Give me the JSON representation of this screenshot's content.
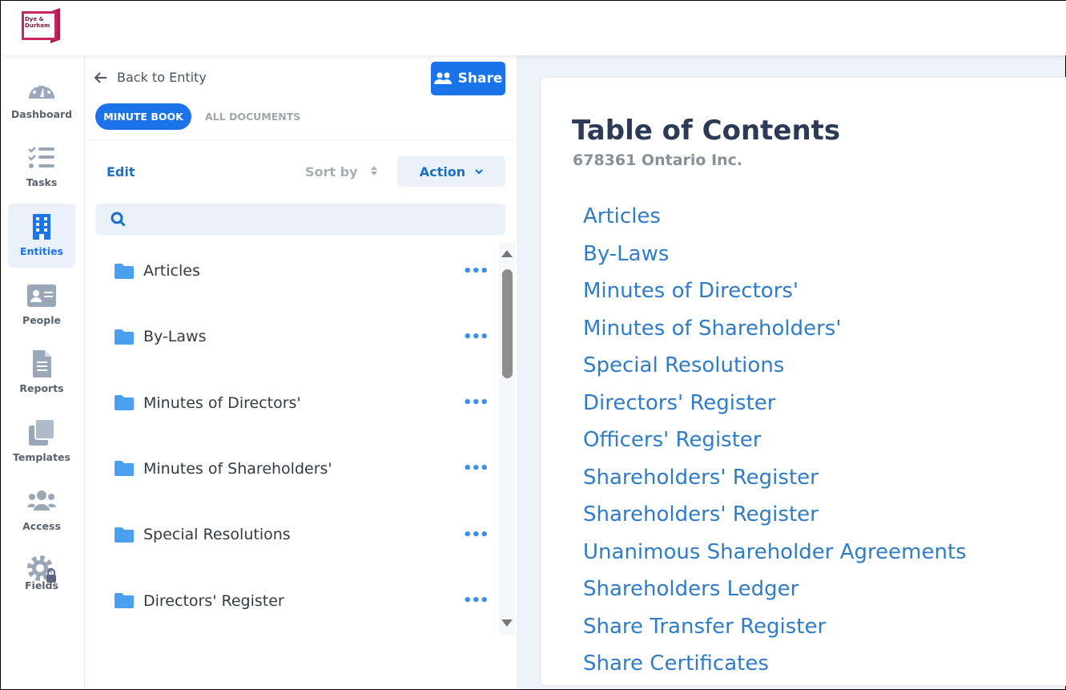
{
  "logo": {
    "text": "Dye &\nDurham",
    "brand_color": "#c8245f"
  },
  "sidebar": {
    "items": [
      {
        "label": "Dashboard",
        "icon": "dashboard-gauge-icon"
      },
      {
        "label": "Tasks",
        "icon": "tasks-list-icon"
      },
      {
        "label": "Entities",
        "icon": "building-icon",
        "active": true
      },
      {
        "label": "People",
        "icon": "id-card-icon"
      },
      {
        "label": "Reports",
        "icon": "document-icon"
      },
      {
        "label": "Templates",
        "icon": "copy-icon"
      },
      {
        "label": "Access",
        "icon": "users-icon"
      },
      {
        "label": "Fields",
        "icon": "gear-lock-icon"
      }
    ]
  },
  "panel": {
    "back_label": "Back to Entity",
    "share_label": "Share",
    "tabs": [
      {
        "label": "MINUTE BOOK",
        "active": true
      },
      {
        "label": "ALL DOCUMENTS"
      }
    ],
    "edit_label": "Edit",
    "sort_label": "Sort by",
    "action_label": "Action",
    "search": {
      "value": "",
      "placeholder": ""
    },
    "folders": [
      "Articles",
      "By-Laws",
      "Minutes of Directors'",
      "Minutes of Shareholders'",
      "Special Resolutions",
      "Directors' Register"
    ],
    "more_label": "•••"
  },
  "toc": {
    "title": "Table of Contents",
    "subtitle": "678361 Ontario Inc.",
    "items": [
      "Articles",
      "By-Laws",
      "Minutes of Directors'",
      "Minutes of Shareholders'",
      "Special Resolutions",
      "Directors' Register",
      "Officers' Register",
      "Shareholders' Register",
      "Shareholders' Register",
      "Unanimous Shareholder Agreements",
      "Shareholders Ledger",
      "Share Transfer Register",
      "Share Certificates"
    ]
  },
  "colors": {
    "accent": "#1a73e8",
    "link": "#2f7cc8",
    "folder": "#4a9ff0"
  }
}
